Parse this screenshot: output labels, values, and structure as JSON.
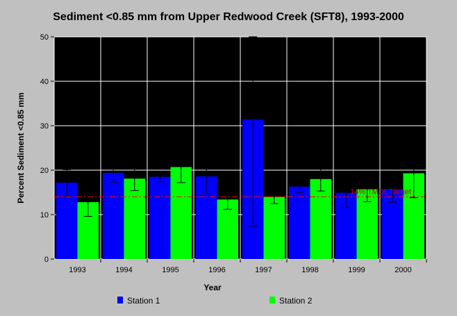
{
  "chart_data": {
    "type": "bar",
    "title": "Sediment <0.85 mm from Upper Redwood Creek (SFT8), 1993-2000",
    "xlabel": "Year",
    "ylabel": "Percent Sediment <0.85 mm",
    "ylim": [
      0,
      50
    ],
    "yticks": [
      "0",
      "10",
      "20",
      "30",
      "40",
      "50"
    ],
    "categories": [
      "1993",
      "1994",
      "1995",
      "1996",
      "1997",
      "1998",
      "1999",
      "2000"
    ],
    "series": [
      {
        "name": "Station 1",
        "color": "#0000ff",
        "values": [
          17.2,
          19.4,
          18.5,
          18.6,
          31.4,
          16.3,
          14.9,
          15.7
        ],
        "error_low": [
          14.2,
          17.3,
          17.4,
          14.7,
          7.4,
          15.0,
          11.6,
          12.8
        ],
        "error_high": [
          20.1,
          21.5,
          19.5,
          22.5,
          55.0,
          17.7,
          18.1,
          18.6
        ]
      },
      {
        "name": "Station 2",
        "color": "#00ff00",
        "values": [
          12.8,
          18.1,
          20.7,
          13.4,
          14.0,
          18.0,
          15.7,
          19.3
        ],
        "error_low": [
          9.6,
          15.4,
          17.2,
          11.2,
          12.5,
          15.3,
          12.9,
          13.8
        ],
        "error_high": [
          15.9,
          20.8,
          24.0,
          15.7,
          15.4,
          20.8,
          18.4,
          24.5
        ]
      }
    ],
    "reference_line": {
      "value": 14,
      "label": "14% TMDL Target",
      "color": "#ff0000"
    },
    "grid": true,
    "legend_position": "bottom"
  }
}
